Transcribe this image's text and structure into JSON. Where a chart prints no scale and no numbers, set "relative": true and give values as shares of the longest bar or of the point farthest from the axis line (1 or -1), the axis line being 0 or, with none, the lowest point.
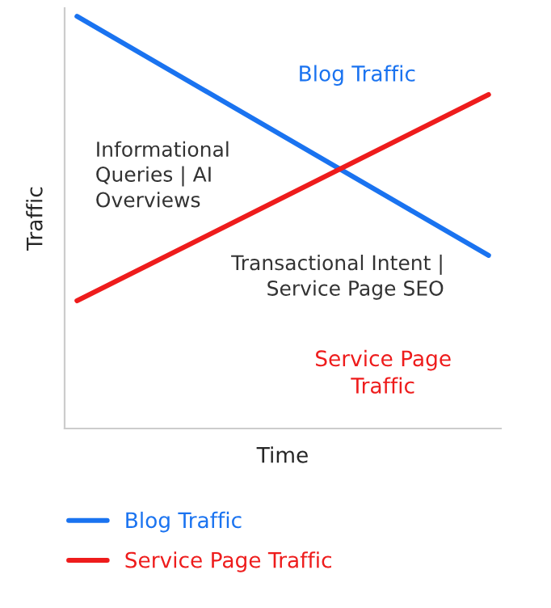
{
  "chart_data": {
    "type": "line",
    "relative": true,
    "xlabel": "Time",
    "ylabel": "Traffic",
    "categories": [
      null,
      null
    ],
    "series": [
      {
        "name": "Blog Traffic",
        "color": "#1a73f0",
        "values": [
          1,
          0.42
        ]
      },
      {
        "name": "Service Page Traffic",
        "color": "#ee1c1c",
        "values": [
          0.31,
          0.81
        ]
      }
    ],
    "annotations": [
      "Informational\nQueries | AI\nOverviews",
      "Transactional Intent |\nService Page SEO"
    ],
    "legend": "bottom",
    "marker": "none",
    "line_style": "solid"
  }
}
